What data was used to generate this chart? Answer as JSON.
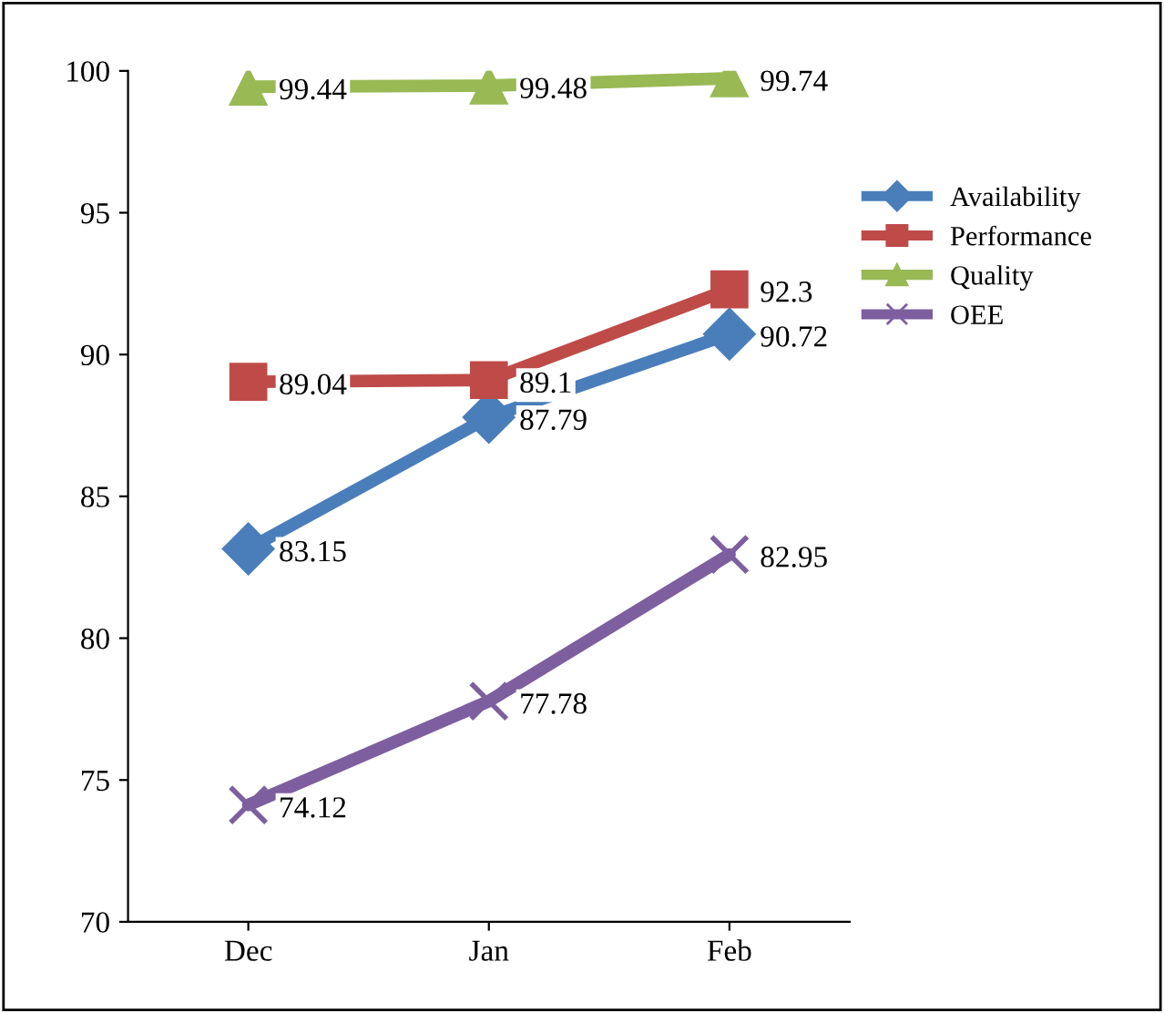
{
  "chart_data": {
    "type": "line",
    "categories": [
      "Dec",
      "Jan",
      "Feb"
    ],
    "series": [
      {
        "name": "Availability",
        "color": "#4a7ebb",
        "marker": "diamond",
        "values": [
          83.15,
          87.79,
          90.72
        ]
      },
      {
        "name": "Performance",
        "color": "#be4b48",
        "marker": "square",
        "values": [
          89.04,
          89.1,
          92.3
        ]
      },
      {
        "name": "Quality",
        "color": "#98b954",
        "marker": "triangle",
        "values": [
          99.44,
          99.48,
          99.74
        ]
      },
      {
        "name": "OEE",
        "color": "#7d5fa0",
        "marker": "cross",
        "values": [
          74.12,
          77.78,
          82.95
        ]
      }
    ],
    "ylim": [
      70,
      100
    ],
    "yticks": [
      70,
      75,
      80,
      85,
      90,
      95,
      100
    ],
    "grid": false,
    "legend": "right",
    "data_labels": true,
    "line_style": "solid"
  }
}
